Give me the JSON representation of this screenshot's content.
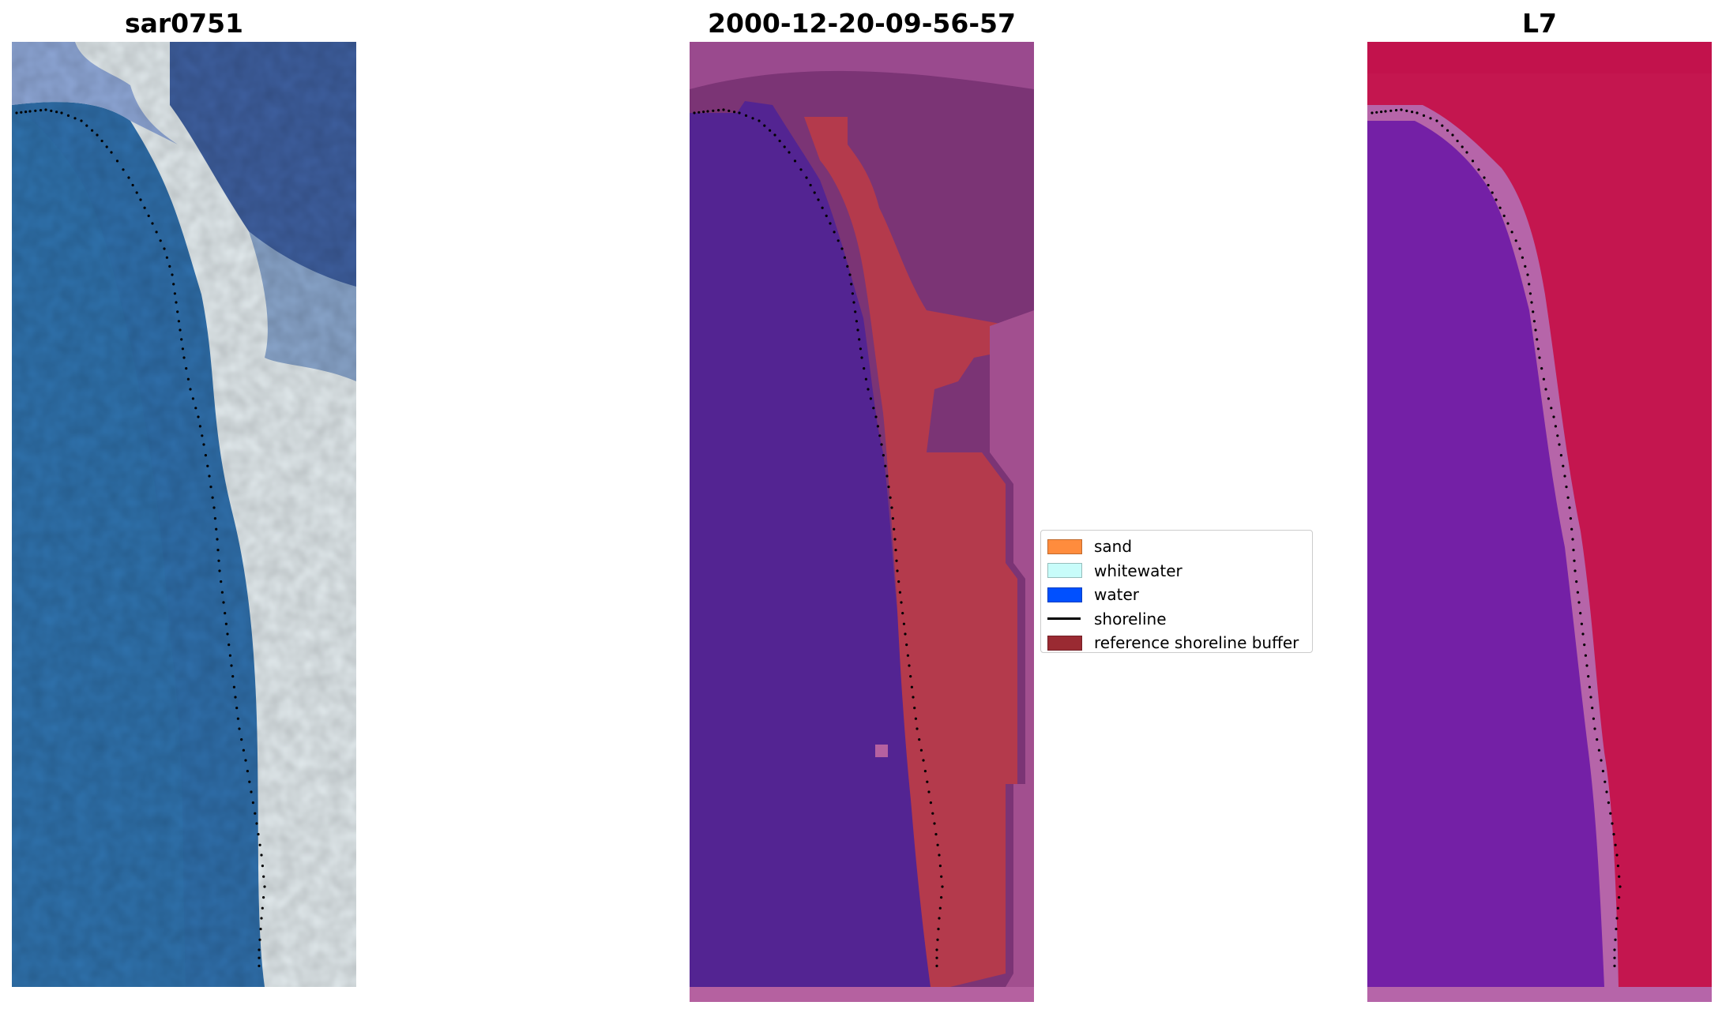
{
  "titles": {
    "site": "sar0751",
    "date": "2000-12-20-09-56-57",
    "satellite": "L7"
  },
  "legend": {
    "items": [
      {
        "label": "sand",
        "color": "#ff8c3d",
        "kind": "patch"
      },
      {
        "label": "whitewater",
        "color": "#c8fcfa",
        "kind": "patch"
      },
      {
        "label": "water",
        "color": "#0050ff",
        "kind": "patch"
      },
      {
        "label": "shoreline",
        "color": "#000000",
        "kind": "line"
      },
      {
        "label": "reference shoreline buffer",
        "color": "#9a2a32",
        "kind": "patch"
      }
    ]
  },
  "colors": {
    "water_rgb": "#2f6fab",
    "land_rgb": "#3f5f9f",
    "surf_rgb": "#e6eef0",
    "class_water": "#532492",
    "class_land": "#6f2a6c",
    "class_buffer": "#b43a4c",
    "class_rim": "#b561a0",
    "index_water": "#7420a6",
    "index_land": "#c4164f",
    "index_rim": "#b665a9",
    "shoreline_points": "#000000"
  }
}
